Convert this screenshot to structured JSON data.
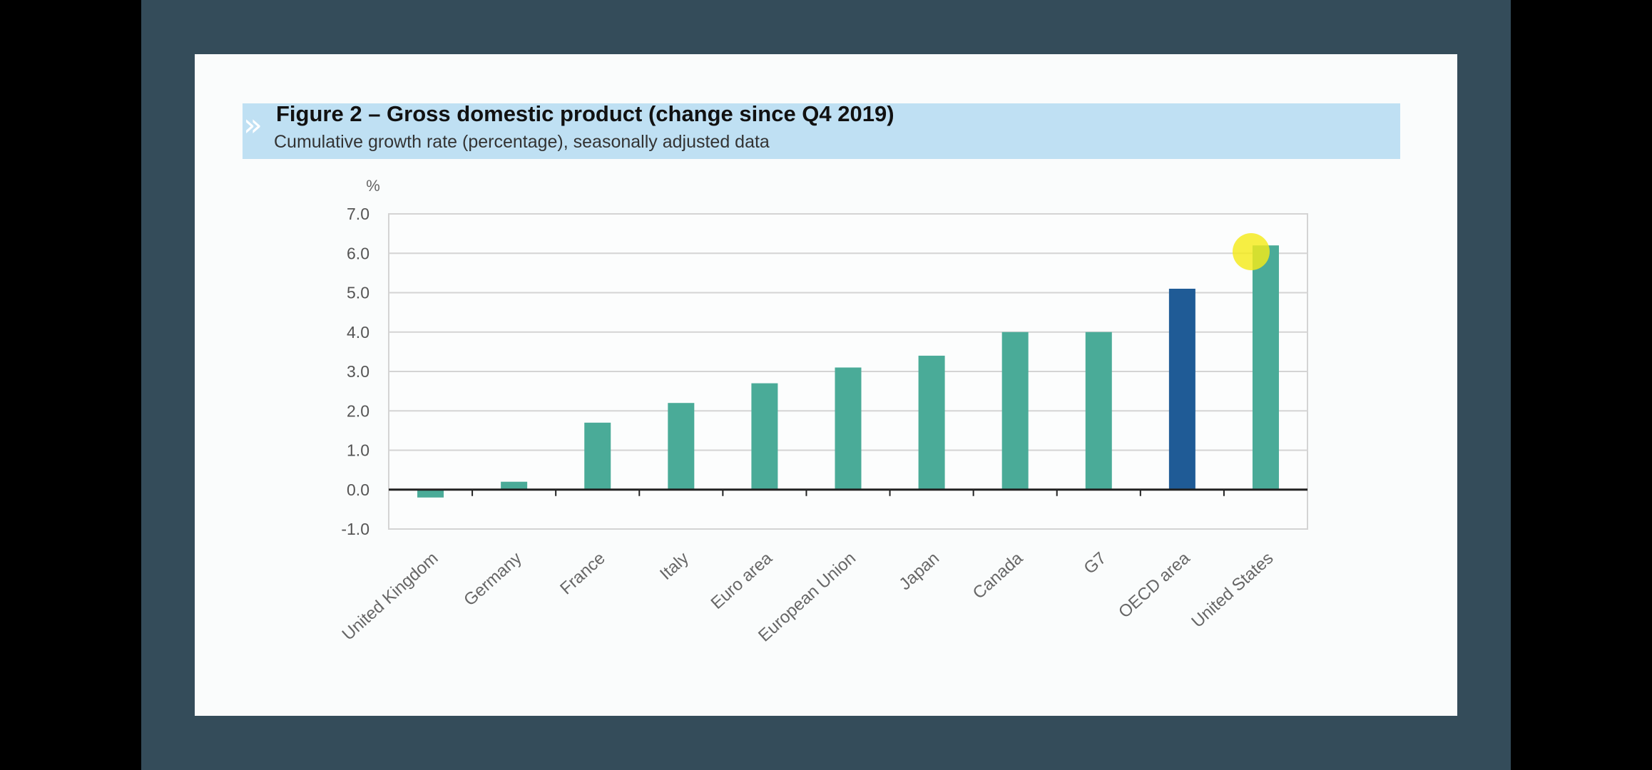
{
  "figure": {
    "title": "Figure 2 – Gross domestic product (change since Q4 2019)",
    "subtitle": "Cumulative growth rate (percentage), seasonally adjusted data",
    "band_arrows": "»"
  },
  "colors": {
    "frame": "#344c5a",
    "slide": "#fafcfc",
    "band": "#bfe0f3",
    "bar": "#4aab98",
    "bar_highlight": "#1f5b96",
    "cursor": "#f4ea1a"
  },
  "chart_data": {
    "type": "bar",
    "title": "Figure 2 – Gross domestic product (change since Q4 2019)",
    "subtitle": "Cumulative growth rate (percentage), seasonally adjusted data",
    "ylabel": "%",
    "xlabel": "",
    "ylim": [
      -1.0,
      7.0
    ],
    "yticks": [
      "7.0",
      "6.0",
      "5.0",
      "4.0",
      "3.0",
      "2.0",
      "1.0",
      "0.0",
      "-1.0"
    ],
    "grid": true,
    "legend": "none",
    "categories": [
      "United Kingdom",
      "Germany",
      "France",
      "Italy",
      "Euro area",
      "European Union",
      "Japan",
      "Canada",
      "G7",
      "OECD area",
      "United States"
    ],
    "values": [
      -0.2,
      0.2,
      1.7,
      2.2,
      2.7,
      3.1,
      3.4,
      4.0,
      4.0,
      5.1,
      6.2
    ],
    "highlight": "OECD area"
  }
}
